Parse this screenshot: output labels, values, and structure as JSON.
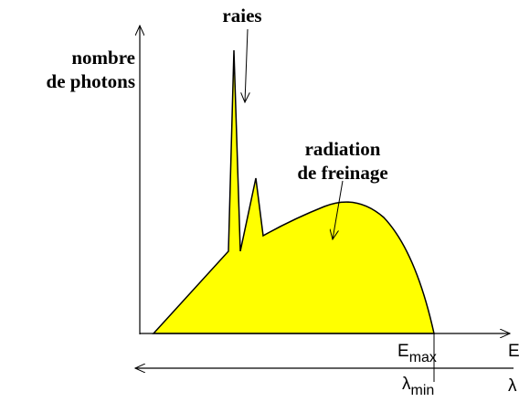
{
  "y_axis": {
    "label": [
      "nombre",
      "de photons"
    ]
  },
  "annotations": {
    "lines": "raies",
    "bremsstrahlung": [
      "radiation",
      "de freinage"
    ]
  },
  "energy_axis": {
    "marker": {
      "symbol": "E",
      "subscript": "max"
    },
    "label": "E"
  },
  "wavelength_axis": {
    "marker": {
      "symbol": "λ",
      "subscript": "min"
    },
    "label": "λ"
  }
}
